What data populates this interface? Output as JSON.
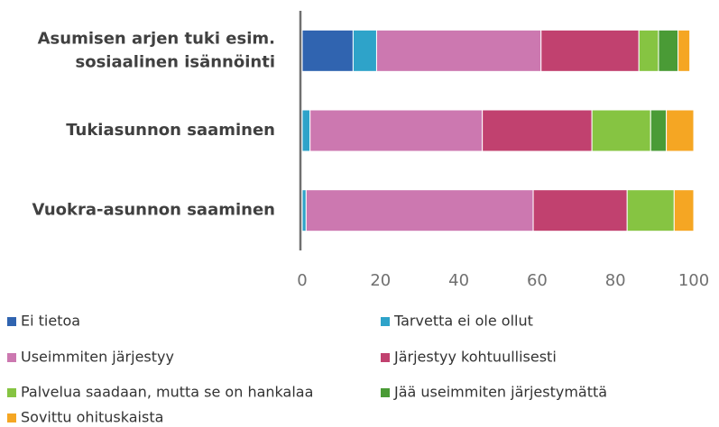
{
  "chart_data": {
    "type": "stacked_bar_horizontal",
    "categories": [
      "Asumisen arjen tuki esim.\nsosiaalinen isännöinti",
      "Tukiasunnon saaminen",
      "Vuokra-asunnon saaminen"
    ],
    "series": [
      {
        "name": "Ei tietoa",
        "color": "#3064b0",
        "values": [
          13,
          0,
          0
        ]
      },
      {
        "name": "Tarvetta ei ole ollut",
        "color": "#2ea3c9",
        "values": [
          6,
          2,
          1
        ]
      },
      {
        "name": "Useimmiten järjestyy",
        "color": "#cc78b0",
        "values": [
          42,
          44,
          58
        ]
      },
      {
        "name": "Järjestyy kohtuullisesti",
        "color": "#c1416f",
        "values": [
          25,
          28,
          24
        ]
      },
      {
        "name": "Palvelua saadaan, mutta se on hankalaa",
        "color": "#86c442",
        "values": [
          5,
          15,
          12
        ]
      },
      {
        "name": "Jää useimmiten järjestymättä",
        "color": "#4a9b36",
        "values": [
          5,
          4,
          0
        ]
      },
      {
        "name": "Sovittu ohituskaista",
        "color": "#f5a623",
        "values": [
          3,
          7,
          5
        ]
      }
    ],
    "xlim": [
      0,
      100
    ],
    "xticks": [
      0,
      20,
      40,
      60,
      80,
      100
    ],
    "grid": false
  }
}
